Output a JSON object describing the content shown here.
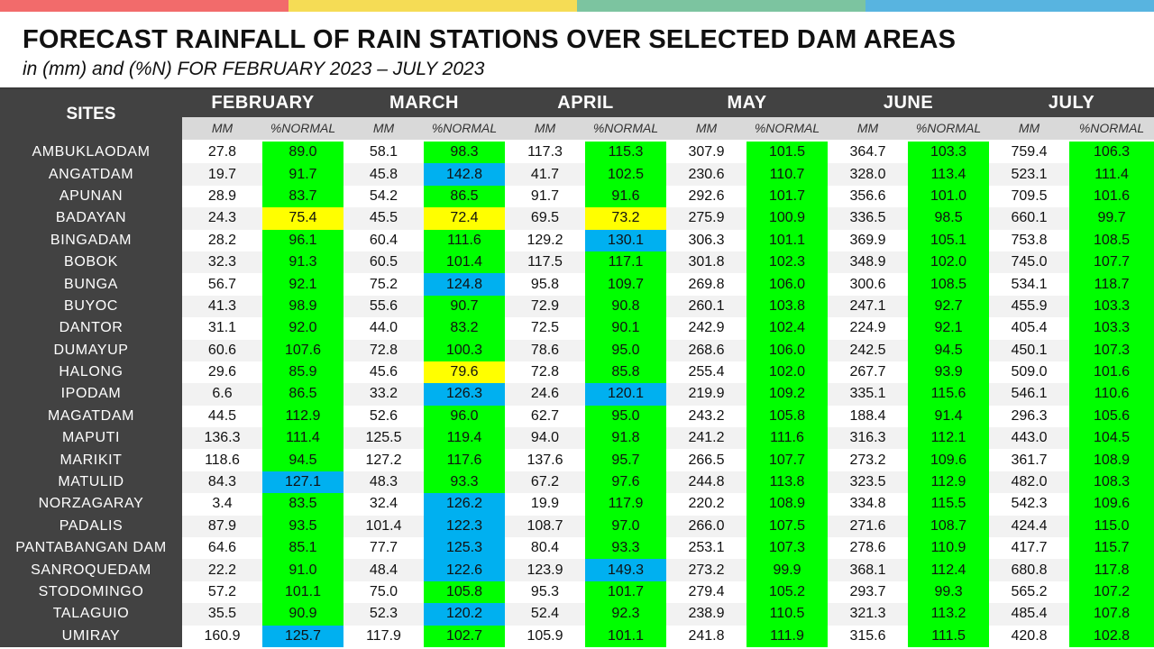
{
  "colors": {
    "band": [
      "#f26b6b",
      "#f5dc55",
      "#7cc4a0",
      "#58b4e0"
    ],
    "header_dark": "#424242",
    "green": "#00ff00",
    "blue": "#00b0f0",
    "yellow": "#ffff00"
  },
  "title": "FORECAST RAINFALL OF RAIN STATIONS OVER SELECTED DAM AREAS",
  "subtitle": "in (mm) and (%N) FOR FEBRUARY 2023 – JULY 2023",
  "table": {
    "sites_header": "SITES",
    "months": [
      "FEBRUARY",
      "MARCH",
      "APRIL",
      "MAY",
      "JUNE",
      "JULY"
    ],
    "sub_mm": "MM",
    "sub_pct": "%NORMAL",
    "rows": [
      {
        "site": "AMBUKLAODAM",
        "values": [
          [
            "27.8",
            "89.0",
            "green"
          ],
          [
            "58.1",
            "98.3",
            "green"
          ],
          [
            "117.3",
            "115.3",
            "green"
          ],
          [
            "307.9",
            "101.5",
            "green"
          ],
          [
            "364.7",
            "103.3",
            "green"
          ],
          [
            "759.4",
            "106.3",
            "green"
          ]
        ]
      },
      {
        "site": "ANGATDAM",
        "values": [
          [
            "19.7",
            "91.7",
            "green"
          ],
          [
            "45.8",
            "142.8",
            "blue"
          ],
          [
            "41.7",
            "102.5",
            "green"
          ],
          [
            "230.6",
            "110.7",
            "green"
          ],
          [
            "328.0",
            "113.4",
            "green"
          ],
          [
            "523.1",
            "111.4",
            "green"
          ]
        ]
      },
      {
        "site": "APUNAN",
        "values": [
          [
            "28.9",
            "83.7",
            "green"
          ],
          [
            "54.2",
            "86.5",
            "green"
          ],
          [
            "91.7",
            "91.6",
            "green"
          ],
          [
            "292.6",
            "101.7",
            "green"
          ],
          [
            "356.6",
            "101.0",
            "green"
          ],
          [
            "709.5",
            "101.6",
            "green"
          ]
        ]
      },
      {
        "site": "BADAYAN",
        "values": [
          [
            "24.3",
            "75.4",
            "yellow"
          ],
          [
            "45.5",
            "72.4",
            "yellow"
          ],
          [
            "69.5",
            "73.2",
            "yellow"
          ],
          [
            "275.9",
            "100.9",
            "green"
          ],
          [
            "336.5",
            "98.5",
            "green"
          ],
          [
            "660.1",
            "99.7",
            "green"
          ]
        ]
      },
      {
        "site": "BINGADAM",
        "values": [
          [
            "28.2",
            "96.1",
            "green"
          ],
          [
            "60.4",
            "111.6",
            "green"
          ],
          [
            "129.2",
            "130.1",
            "blue"
          ],
          [
            "306.3",
            "101.1",
            "green"
          ],
          [
            "369.9",
            "105.1",
            "green"
          ],
          [
            "753.8",
            "108.5",
            "green"
          ]
        ]
      },
      {
        "site": "BOBOK",
        "values": [
          [
            "32.3",
            "91.3",
            "green"
          ],
          [
            "60.5",
            "101.4",
            "green"
          ],
          [
            "117.5",
            "117.1",
            "green"
          ],
          [
            "301.8",
            "102.3",
            "green"
          ],
          [
            "348.9",
            "102.0",
            "green"
          ],
          [
            "745.0",
            "107.7",
            "green"
          ]
        ]
      },
      {
        "site": "BUNGA",
        "values": [
          [
            "56.7",
            "92.1",
            "green"
          ],
          [
            "75.2",
            "124.8",
            "blue"
          ],
          [
            "95.8",
            "109.7",
            "green"
          ],
          [
            "269.8",
            "106.0",
            "green"
          ],
          [
            "300.6",
            "108.5",
            "green"
          ],
          [
            "534.1",
            "118.7",
            "green"
          ]
        ]
      },
      {
        "site": "BUYOC",
        "values": [
          [
            "41.3",
            "98.9",
            "green"
          ],
          [
            "55.6",
            "90.7",
            "green"
          ],
          [
            "72.9",
            "90.8",
            "green"
          ],
          [
            "260.1",
            "103.8",
            "green"
          ],
          [
            "247.1",
            "92.7",
            "green"
          ],
          [
            "455.9",
            "103.3",
            "green"
          ]
        ]
      },
      {
        "site": "DANTOR",
        "values": [
          [
            "31.1",
            "92.0",
            "green"
          ],
          [
            "44.0",
            "83.2",
            "green"
          ],
          [
            "72.5",
            "90.1",
            "green"
          ],
          [
            "242.9",
            "102.4",
            "green"
          ],
          [
            "224.9",
            "92.1",
            "green"
          ],
          [
            "405.4",
            "103.3",
            "green"
          ]
        ]
      },
      {
        "site": "DUMAYUP",
        "values": [
          [
            "60.6",
            "107.6",
            "green"
          ],
          [
            "72.8",
            "100.3",
            "green"
          ],
          [
            "78.6",
            "95.0",
            "green"
          ],
          [
            "268.6",
            "106.0",
            "green"
          ],
          [
            "242.5",
            "94.5",
            "green"
          ],
          [
            "450.1",
            "107.3",
            "green"
          ]
        ]
      },
      {
        "site": "HALONG",
        "values": [
          [
            "29.6",
            "85.9",
            "green"
          ],
          [
            "45.6",
            "79.6",
            "yellow"
          ],
          [
            "72.8",
            "85.8",
            "green"
          ],
          [
            "255.4",
            "102.0",
            "green"
          ],
          [
            "267.7",
            "93.9",
            "green"
          ],
          [
            "509.0",
            "101.6",
            "green"
          ]
        ]
      },
      {
        "site": "IPODAM",
        "values": [
          [
            "6.6",
            "86.5",
            "green"
          ],
          [
            "33.2",
            "126.3",
            "blue"
          ],
          [
            "24.6",
            "120.1",
            "blue"
          ],
          [
            "219.9",
            "109.2",
            "green"
          ],
          [
            "335.1",
            "115.6",
            "green"
          ],
          [
            "546.1",
            "110.6",
            "green"
          ]
        ]
      },
      {
        "site": "MAGATDAM",
        "values": [
          [
            "44.5",
            "112.9",
            "green"
          ],
          [
            "52.6",
            "96.0",
            "green"
          ],
          [
            "62.7",
            "95.0",
            "green"
          ],
          [
            "243.2",
            "105.8",
            "green"
          ],
          [
            "188.4",
            "91.4",
            "green"
          ],
          [
            "296.3",
            "105.6",
            "green"
          ]
        ]
      },
      {
        "site": "MAPUTI",
        "values": [
          [
            "136.3",
            "111.4",
            "green"
          ],
          [
            "125.5",
            "119.4",
            "green"
          ],
          [
            "94.0",
            "91.8",
            "green"
          ],
          [
            "241.2",
            "111.6",
            "green"
          ],
          [
            "316.3",
            "112.1",
            "green"
          ],
          [
            "443.0",
            "104.5",
            "green"
          ]
        ]
      },
      {
        "site": "MARIKIT",
        "values": [
          [
            "118.6",
            "94.5",
            "green"
          ],
          [
            "127.2",
            "117.6",
            "green"
          ],
          [
            "137.6",
            "95.7",
            "green"
          ],
          [
            "266.5",
            "107.7",
            "green"
          ],
          [
            "273.2",
            "109.6",
            "green"
          ],
          [
            "361.7",
            "108.9",
            "green"
          ]
        ]
      },
      {
        "site": "MATULID",
        "values": [
          [
            "84.3",
            "127.1",
            "blue"
          ],
          [
            "48.3",
            "93.3",
            "green"
          ],
          [
            "67.2",
            "97.6",
            "green"
          ],
          [
            "244.8",
            "113.8",
            "green"
          ],
          [
            "323.5",
            "112.9",
            "green"
          ],
          [
            "482.0",
            "108.3",
            "green"
          ]
        ]
      },
      {
        "site": "NORZAGARAY",
        "values": [
          [
            "3.4",
            "83.5",
            "green"
          ],
          [
            "32.4",
            "126.2",
            "blue"
          ],
          [
            "19.9",
            "117.9",
            "green"
          ],
          [
            "220.2",
            "108.9",
            "green"
          ],
          [
            "334.8",
            "115.5",
            "green"
          ],
          [
            "542.3",
            "109.6",
            "green"
          ]
        ]
      },
      {
        "site": "PADALIS",
        "values": [
          [
            "87.9",
            "93.5",
            "green"
          ],
          [
            "101.4",
            "122.3",
            "blue"
          ],
          [
            "108.7",
            "97.0",
            "green"
          ],
          [
            "266.0",
            "107.5",
            "green"
          ],
          [
            "271.6",
            "108.7",
            "green"
          ],
          [
            "424.4",
            "115.0",
            "green"
          ]
        ]
      },
      {
        "site": "PANTABANGAN DAM",
        "values": [
          [
            "64.6",
            "85.1",
            "green"
          ],
          [
            "77.7",
            "125.3",
            "blue"
          ],
          [
            "80.4",
            "93.3",
            "green"
          ],
          [
            "253.1",
            "107.3",
            "green"
          ],
          [
            "278.6",
            "110.9",
            "green"
          ],
          [
            "417.7",
            "115.7",
            "green"
          ]
        ]
      },
      {
        "site": "SANROQUEDAM",
        "values": [
          [
            "22.2",
            "91.0",
            "green"
          ],
          [
            "48.4",
            "122.6",
            "blue"
          ],
          [
            "123.9",
            "149.3",
            "blue"
          ],
          [
            "273.2",
            "99.9",
            "green"
          ],
          [
            "368.1",
            "112.4",
            "green"
          ],
          [
            "680.8",
            "117.8",
            "green"
          ]
        ]
      },
      {
        "site": "STODOMINGO",
        "values": [
          [
            "57.2",
            "101.1",
            "green"
          ],
          [
            "75.0",
            "105.8",
            "green"
          ],
          [
            "95.3",
            "101.7",
            "green"
          ],
          [
            "279.4",
            "105.2",
            "green"
          ],
          [
            "293.7",
            "99.3",
            "green"
          ],
          [
            "565.2",
            "107.2",
            "green"
          ]
        ]
      },
      {
        "site": "TALAGUIO",
        "values": [
          [
            "35.5",
            "90.9",
            "green"
          ],
          [
            "52.3",
            "120.2",
            "blue"
          ],
          [
            "52.4",
            "92.3",
            "green"
          ],
          [
            "238.9",
            "110.5",
            "green"
          ],
          [
            "321.3",
            "113.2",
            "green"
          ],
          [
            "485.4",
            "107.8",
            "green"
          ]
        ]
      },
      {
        "site": "UMIRAY",
        "values": [
          [
            "160.9",
            "125.7",
            "blue"
          ],
          [
            "117.9",
            "102.7",
            "green"
          ],
          [
            "105.9",
            "101.1",
            "green"
          ],
          [
            "241.8",
            "111.9",
            "green"
          ],
          [
            "315.6",
            "111.5",
            "green"
          ],
          [
            "420.8",
            "102.8",
            "green"
          ]
        ]
      }
    ]
  }
}
